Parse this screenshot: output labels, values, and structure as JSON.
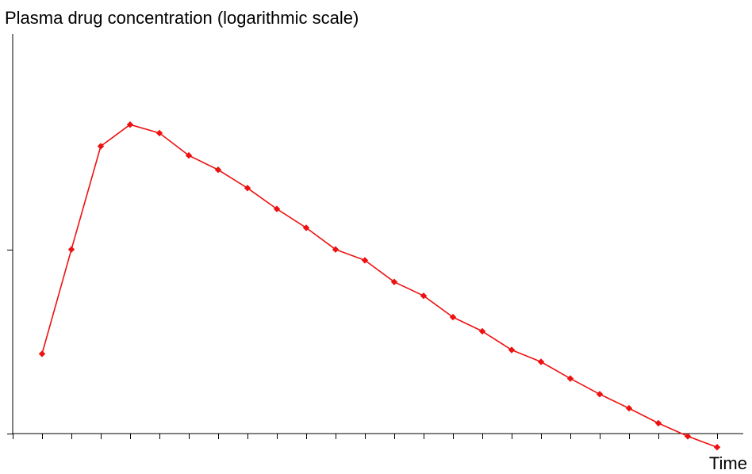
{
  "chart_data": {
    "type": "line",
    "title": "Plasma drug concentration (logarithmic scale)",
    "xlabel": "Time",
    "ylabel": "",
    "y_scale": "log",
    "ylim": [
      1,
      4.5
    ],
    "y_ticks": [
      1,
      2
    ],
    "xlim": [
      0,
      24.5
    ],
    "x_tick_count": 25,
    "grid": false,
    "x": [
      1,
      2,
      3,
      4,
      5,
      6,
      7,
      8,
      9,
      10,
      11,
      12,
      13,
      14,
      15,
      16,
      17,
      18,
      19,
      20,
      21,
      22,
      23,
      24
    ],
    "series": [
      {
        "values": [
          1.35,
          2.0,
          2.95,
          3.2,
          3.1,
          2.85,
          2.7,
          2.52,
          2.33,
          2.17,
          2.0,
          1.92,
          1.77,
          1.68,
          1.55,
          1.47,
          1.37,
          1.31,
          1.23,
          1.16,
          1.1,
          1.04,
          0.99,
          0.95
        ],
        "color": "#ee1111"
      }
    ]
  }
}
